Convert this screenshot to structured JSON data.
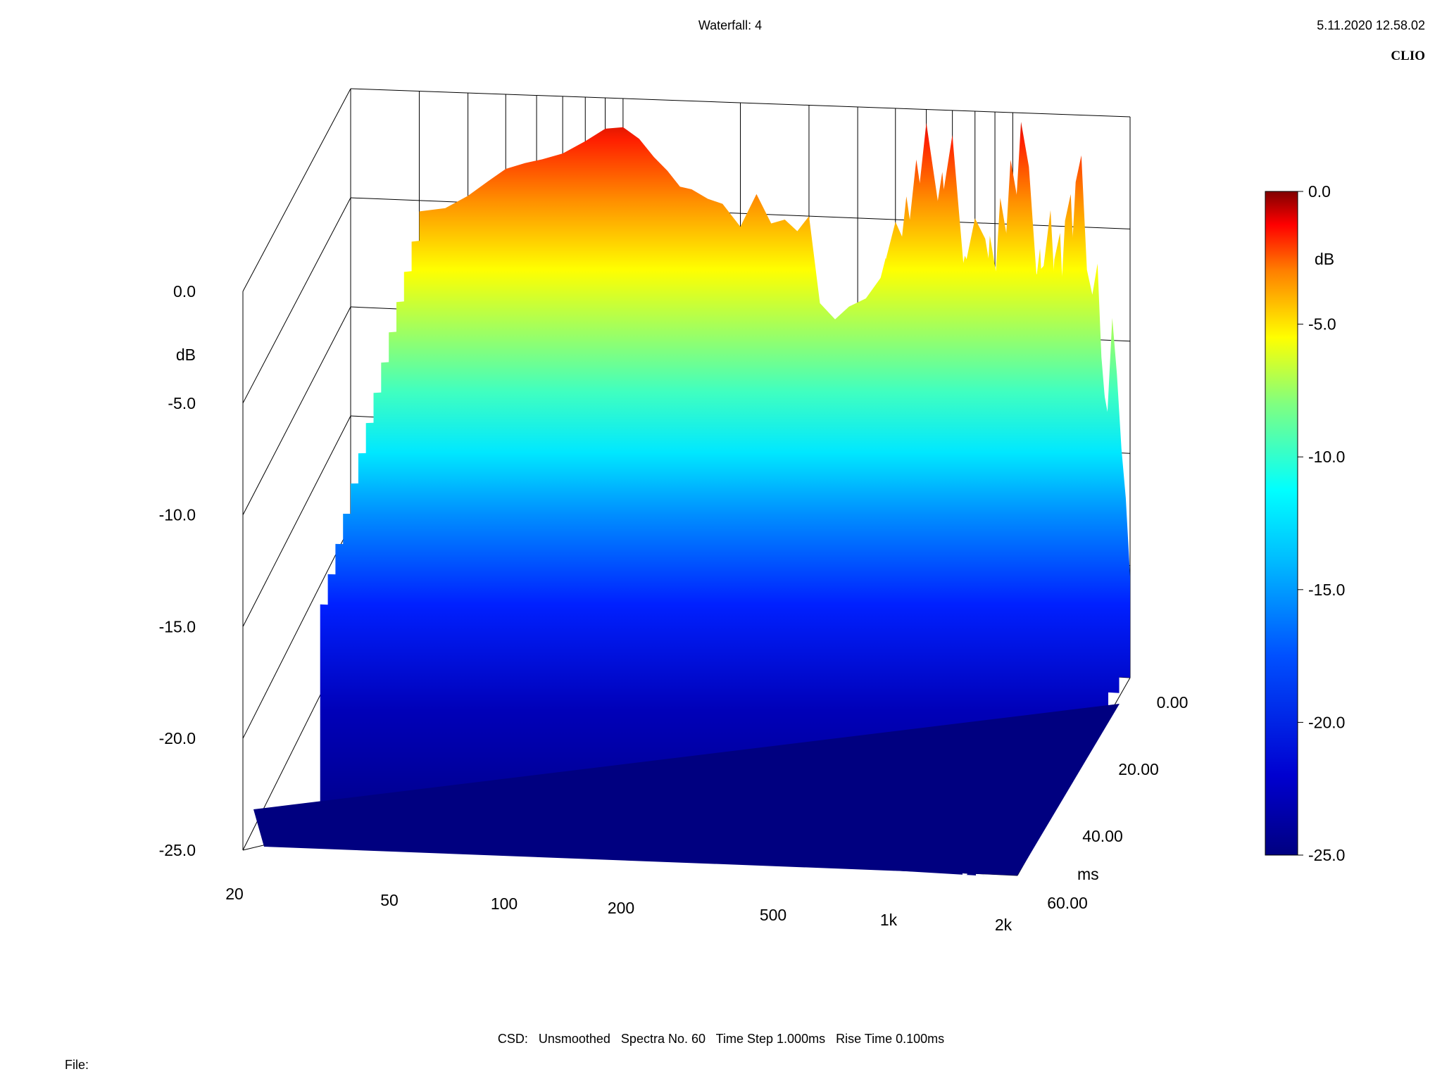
{
  "header": {
    "title": "Waterfall: 4",
    "timestamp": "5.11.2020 12.58.02",
    "brand": "CLIO"
  },
  "footer": {
    "settings": "CSD:   Unsmoothed   Spectra No. 60   Time Step 1.000ms   Rise Time 0.100ms",
    "file_label": "File:"
  },
  "chart_data": {
    "type": "waterfall",
    "title": "Waterfall: 4",
    "x_axis": {
      "label": "",
      "scale": "log",
      "range": [
        20,
        2000
      ],
      "ticks": [
        20,
        50,
        100,
        200,
        500,
        1000,
        2000
      ],
      "tick_labels": [
        "20",
        "50",
        "100",
        "200",
        "500",
        "1k",
        "2k"
      ]
    },
    "z_axis": {
      "label": "dB",
      "range": [
        -25,
        0
      ],
      "ticks": [
        0,
        -5,
        -10,
        -15,
        -20,
        -25
      ],
      "tick_labels": [
        "0.0",
        "-5.0",
        "-10.0",
        "-15.0",
        "-20.0",
        "-25.0"
      ]
    },
    "t_axis": {
      "label": "ms",
      "range": [
        0,
        60
      ],
      "ticks": [
        0,
        20,
        40,
        60
      ],
      "tick_labels": [
        "0.00",
        "20.00",
        "40.00",
        "60.00"
      ]
    },
    "colorbar": {
      "label": "dB",
      "range": [
        -25,
        0
      ],
      "ticks": [
        0,
        -5,
        -10,
        -15,
        -20,
        -25
      ],
      "tick_labels": [
        "0.0",
        "-5.0",
        "-10.0",
        "-15.0",
        "-20.0",
        "-25.0"
      ],
      "colors": [
        "#800000",
        "#ff0000",
        "#ff8000",
        "#ffff00",
        "#80ff80",
        "#00ffff",
        "#0080ff",
        "#0000ff",
        "#000080"
      ]
    },
    "spectra_count": 60,
    "time_step_ms": 1.0,
    "front_spectrum": {
      "freq_hz": [
        30,
        35,
        40,
        45,
        50,
        56,
        62,
        70,
        80,
        90,
        100,
        110,
        120,
        130,
        140,
        150,
        165,
        180,
        200,
        220,
        240,
        260,
        280,
        300,
        320,
        350,
        380,
        420,
        460,
        500,
        550,
        600,
        650,
        700,
        750,
        800,
        850,
        900,
        950,
        1000,
        1050,
        1100,
        1150,
        1200,
        1250,
        1300,
        1350,
        1400,
        1450,
        1500,
        1550,
        1600,
        1650,
        1700,
        1750,
        1800,
        1850,
        1900,
        1950,
        2000
      ],
      "level_db": [
        -5.5,
        -5.3,
        -4.7,
        -4.0,
        -3.4,
        -3.1,
        -2.9,
        -2.6,
        -2.0,
        -1.4,
        -1.3,
        -1.8,
        -2.6,
        -3.2,
        -3.9,
        -4.0,
        -4.4,
        -4.6,
        -5.6,
        -4.1,
        -5.4,
        -5.2,
        -5.7,
        -5.0,
        -8.9,
        -9.6,
        -9.0,
        -8.6,
        -7.6,
        -5.1,
        -6.7,
        -0.6,
        -4.7,
        -1.1,
        -7.2,
        -4.8,
        -5.7,
        -8.3,
        -10.0,
        -6.6,
        -0.4,
        -2.4,
        -7.2,
        -6.8,
        -4.3,
        -9.7,
        -11.0,
        -8.0,
        -3.0,
        -1.8,
        -6.9,
        -8.0,
        -6.6,
        -12.0,
        -13.2,
        -9.0,
        -11.5,
        -14.8,
        -17.0,
        -20.5
      ]
    }
  }
}
